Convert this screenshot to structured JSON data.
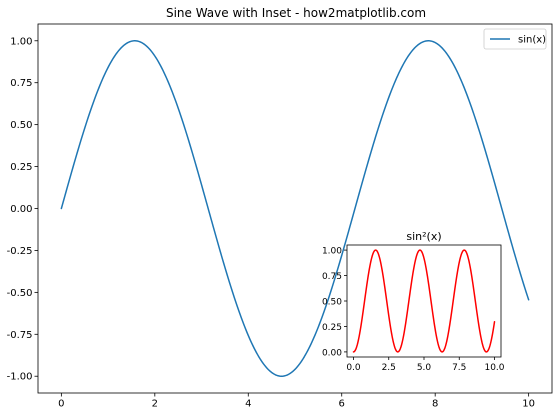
{
  "chart_data": [
    {
      "type": "line",
      "title": "Sine Wave with Inset - how2matplotlib.com",
      "xlabel": "",
      "ylabel": "",
      "xlim": [
        -0.5,
        10.5
      ],
      "ylim": [
        -1.1,
        1.1
      ],
      "x_ticks": [
        0,
        2,
        4,
        6,
        8,
        10
      ],
      "x_tick_labels": [
        "0",
        "2",
        "4",
        "6",
        "8",
        "10"
      ],
      "y_ticks": [
        1.0,
        0.75,
        0.5,
        0.25,
        0.0,
        -0.25,
        -0.5,
        -0.75,
        -1.0
      ],
      "y_tick_labels": [
        "1.00",
        "0.75",
        "0.50",
        "0.25",
        "0.00",
        "-0.25",
        "-0.50",
        "-0.75",
        "-1.00"
      ],
      "grid": false,
      "legend_position": "top-right",
      "series": [
        {
          "name": "sin(x)",
          "color": "#1f77b4",
          "x": [
            0,
            0.5,
            1,
            1.5,
            2,
            2.5,
            3,
            3.5,
            4,
            4.5,
            5,
            5.5,
            6,
            6.5,
            7,
            7.5,
            8,
            8.5,
            9,
            9.5,
            10
          ],
          "y": [
            0,
            0.479,
            0.841,
            0.997,
            0.909,
            0.598,
            0.141,
            -0.351,
            -0.757,
            -0.978,
            -0.959,
            -0.706,
            -0.279,
            0.215,
            0.657,
            0.938,
            0.989,
            0.798,
            0.412,
            -0.075,
            -0.544
          ]
        }
      ]
    },
    {
      "type": "line",
      "title": "sin²(x)",
      "xlabel": "",
      "ylabel": "",
      "xlim": [
        -0.46,
        10.46
      ],
      "ylim": [
        -0.05,
        1.05
      ],
      "x_ticks": [
        0,
        2.5,
        5,
        7.5,
        10
      ],
      "x_tick_labels": [
        "0.0",
        "2.5",
        "5.0",
        "7.5",
        "10.0"
      ],
      "y_ticks": [
        1.0,
        0.75,
        0.5,
        0.25,
        0.0
      ],
      "y_tick_labels": [
        "1.00",
        "0.75",
        "0.50",
        "0.25",
        "0.00"
      ],
      "grid": false,
      "series": [
        {
          "color": "#ff0000",
          "x": [
            0,
            0.5,
            1,
            1.5,
            2,
            2.5,
            3,
            3.5,
            4,
            4.5,
            5,
            5.5,
            6,
            6.5,
            7,
            7.5,
            8,
            8.5,
            9,
            9.5,
            10
          ],
          "y": [
            0,
            0.23,
            0.708,
            0.995,
            0.827,
            0.358,
            0.02,
            0.123,
            0.573,
            0.956,
            0.919,
            0.498,
            0.078,
            0.046,
            0.432,
            0.88,
            0.979,
            0.636,
            0.17,
            0.006,
            0.296
          ]
        }
      ]
    }
  ]
}
